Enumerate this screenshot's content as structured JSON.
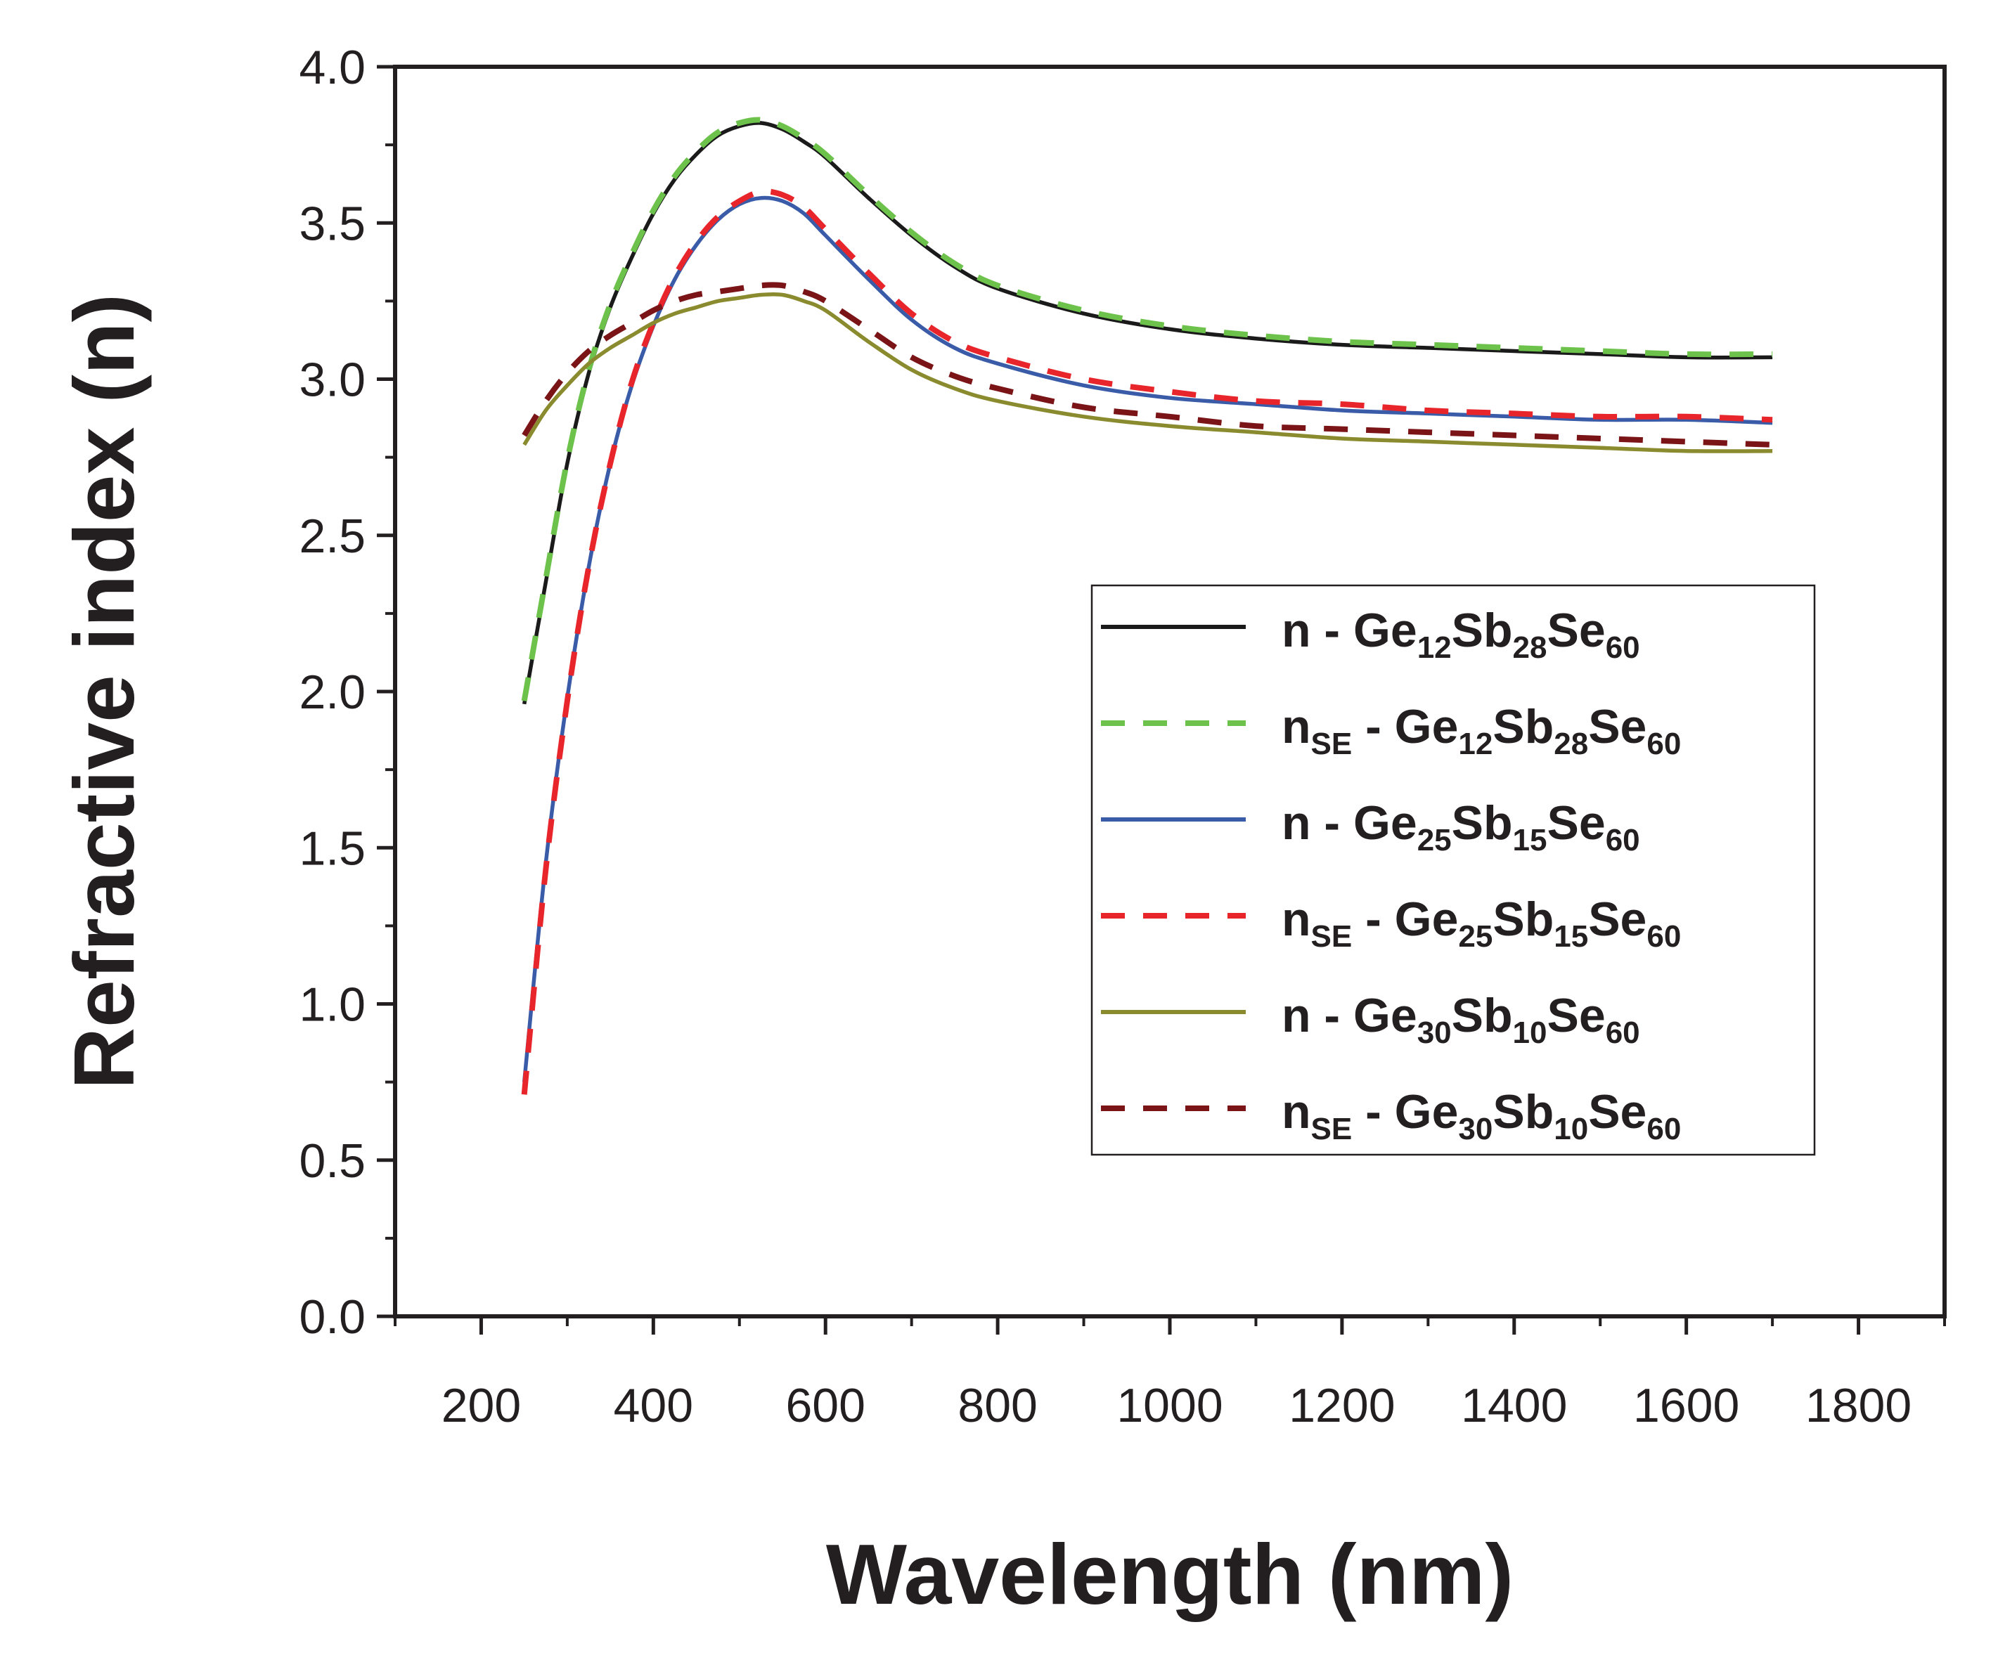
{
  "chart_data": {
    "type": "line",
    "title": "",
    "xlabel": "Wavelength (nm)",
    "ylabel": "Refractive index (n)",
    "xlim": [
      100,
      1900
    ],
    "ylim": [
      0.0,
      4.0
    ],
    "xticks": [
      "200",
      "400",
      "600",
      "800",
      "1000",
      "1200",
      "1400",
      "1600",
      "1800"
    ],
    "yticks": [
      "0.0",
      "0.5",
      "1.0",
      "1.5",
      "2.0",
      "2.5",
      "3.0",
      "3.5",
      "4.0"
    ],
    "grid": false,
    "legend_position": "center-right",
    "series": [
      {
        "name": "n - Ge12Sb28Se60",
        "label_parts": [
          {
            "t": "n - Ge"
          },
          {
            "t": "12",
            "sub": true
          },
          {
            "t": "Sb"
          },
          {
            "t": "28",
            "sub": true
          },
          {
            "t": "Se"
          },
          {
            "t": "60",
            "sub": true
          }
        ],
        "color": "#1a1a1a",
        "dash": false,
        "x": [
          250,
          275,
          300,
          325,
          350,
          375,
          400,
          425,
          450,
          475,
          500,
          525,
          550,
          575,
          600,
          650,
          700,
          750,
          800,
          900,
          1000,
          1100,
          1200,
          1300,
          1400,
          1500,
          1600,
          1700
        ],
        "y": [
          1.96,
          2.35,
          2.73,
          3.02,
          3.23,
          3.39,
          3.53,
          3.64,
          3.72,
          3.78,
          3.81,
          3.82,
          3.8,
          3.76,
          3.71,
          3.58,
          3.46,
          3.36,
          3.29,
          3.21,
          3.16,
          3.13,
          3.11,
          3.1,
          3.09,
          3.08,
          3.07,
          3.07
        ]
      },
      {
        "name": "nSE - Ge12Sb28Se60",
        "label_parts": [
          {
            "t": "n"
          },
          {
            "t": "SE",
            "sub": true
          },
          {
            "t": " - Ge"
          },
          {
            "t": "12",
            "sub": true
          },
          {
            "t": "Sb"
          },
          {
            "t": "28",
            "sub": true
          },
          {
            "t": "Se"
          },
          {
            "t": "60",
            "sub": true
          }
        ],
        "color": "#6cc24a",
        "dash": true,
        "x": [
          250,
          275,
          300,
          325,
          350,
          375,
          400,
          425,
          450,
          475,
          500,
          525,
          550,
          575,
          600,
          650,
          700,
          750,
          800,
          900,
          1000,
          1100,
          1200,
          1300,
          1400,
          1500,
          1600,
          1700
        ],
        "y": [
          1.97,
          2.36,
          2.74,
          3.03,
          3.24,
          3.4,
          3.54,
          3.65,
          3.73,
          3.79,
          3.82,
          3.83,
          3.81,
          3.77,
          3.72,
          3.59,
          3.47,
          3.37,
          3.3,
          3.22,
          3.17,
          3.14,
          3.12,
          3.11,
          3.1,
          3.09,
          3.08,
          3.08
        ]
      },
      {
        "name": "n - Ge25Sb15Se60",
        "label_parts": [
          {
            "t": "n - Ge"
          },
          {
            "t": "25",
            "sub": true
          },
          {
            "t": "Sb"
          },
          {
            "t": "15",
            "sub": true
          },
          {
            "t": "Se"
          },
          {
            "t": "60",
            "sub": true
          }
        ],
        "color": "#3a5ca8",
        "dash": false,
        "x": [
          250,
          275,
          300,
          325,
          350,
          375,
          400,
          425,
          450,
          475,
          500,
          525,
          550,
          575,
          600,
          650,
          700,
          750,
          800,
          900,
          1000,
          1100,
          1200,
          1300,
          1400,
          1500,
          1600,
          1700
        ],
        "y": [
          0.75,
          1.45,
          1.98,
          2.4,
          2.73,
          2.98,
          3.17,
          3.32,
          3.43,
          3.51,
          3.56,
          3.58,
          3.57,
          3.53,
          3.46,
          3.32,
          3.19,
          3.1,
          3.05,
          2.98,
          2.94,
          2.92,
          2.9,
          2.89,
          2.88,
          2.87,
          2.87,
          2.86
        ]
      },
      {
        "name": "nSE - Ge25Sb15Se60",
        "label_parts": [
          {
            "t": "n"
          },
          {
            "t": "SE",
            "sub": true
          },
          {
            "t": " - Ge"
          },
          {
            "t": "25",
            "sub": true
          },
          {
            "t": "Sb"
          },
          {
            "t": "15",
            "sub": true
          },
          {
            "t": "Se"
          },
          {
            "t": "60",
            "sub": true
          }
        ],
        "color": "#e8252a",
        "dash": true,
        "x": [
          250,
          275,
          300,
          325,
          350,
          375,
          400,
          425,
          450,
          475,
          500,
          525,
          550,
          575,
          600,
          650,
          700,
          750,
          800,
          900,
          1000,
          1100,
          1200,
          1300,
          1400,
          1500,
          1600,
          1700
        ],
        "y": [
          0.71,
          1.43,
          1.97,
          2.4,
          2.73,
          2.99,
          3.18,
          3.33,
          3.44,
          3.52,
          3.57,
          3.6,
          3.59,
          3.55,
          3.48,
          3.34,
          3.21,
          3.12,
          3.07,
          3.0,
          2.96,
          2.93,
          2.92,
          2.9,
          2.89,
          2.88,
          2.88,
          2.87
        ]
      },
      {
        "name": "n - Ge30Sb10Se60",
        "label_parts": [
          {
            "t": "n - Ge"
          },
          {
            "t": "30",
            "sub": true
          },
          {
            "t": "Sb"
          },
          {
            "t": "10",
            "sub": true
          },
          {
            "t": "Se"
          },
          {
            "t": "60",
            "sub": true
          }
        ],
        "color": "#8a8a2e",
        "dash": false,
        "x": [
          250,
          275,
          300,
          325,
          350,
          375,
          400,
          425,
          450,
          475,
          500,
          525,
          550,
          575,
          600,
          650,
          700,
          750,
          800,
          900,
          1000,
          1100,
          1200,
          1300,
          1400,
          1500,
          1600,
          1700
        ],
        "y": [
          2.79,
          2.9,
          2.98,
          3.05,
          3.1,
          3.14,
          3.18,
          3.21,
          3.23,
          3.25,
          3.26,
          3.27,
          3.27,
          3.25,
          3.22,
          3.12,
          3.03,
          2.97,
          2.93,
          2.88,
          2.85,
          2.83,
          2.81,
          2.8,
          2.79,
          2.78,
          2.77,
          2.77
        ]
      },
      {
        "name": "nSE - Ge30Sb10Se60",
        "label_parts": [
          {
            "t": "n"
          },
          {
            "t": "SE",
            "sub": true
          },
          {
            "t": " - Ge"
          },
          {
            "t": "30",
            "sub": true
          },
          {
            "t": "Sb"
          },
          {
            "t": "10",
            "sub": true
          },
          {
            "t": "Se"
          },
          {
            "t": "60",
            "sub": true
          }
        ],
        "color": "#7a1416",
        "dash": true,
        "x": [
          250,
          275,
          300,
          325,
          350,
          375,
          400,
          425,
          450,
          475,
          500,
          525,
          550,
          575,
          600,
          650,
          700,
          750,
          800,
          900,
          1000,
          1100,
          1200,
          1300,
          1400,
          1500,
          1600,
          1700
        ],
        "y": [
          2.82,
          2.93,
          3.02,
          3.09,
          3.14,
          3.18,
          3.22,
          3.25,
          3.27,
          3.28,
          3.29,
          3.3,
          3.3,
          3.28,
          3.25,
          3.16,
          3.07,
          3.01,
          2.97,
          2.91,
          2.88,
          2.85,
          2.84,
          2.83,
          2.82,
          2.81,
          2.8,
          2.79
        ]
      }
    ]
  }
}
